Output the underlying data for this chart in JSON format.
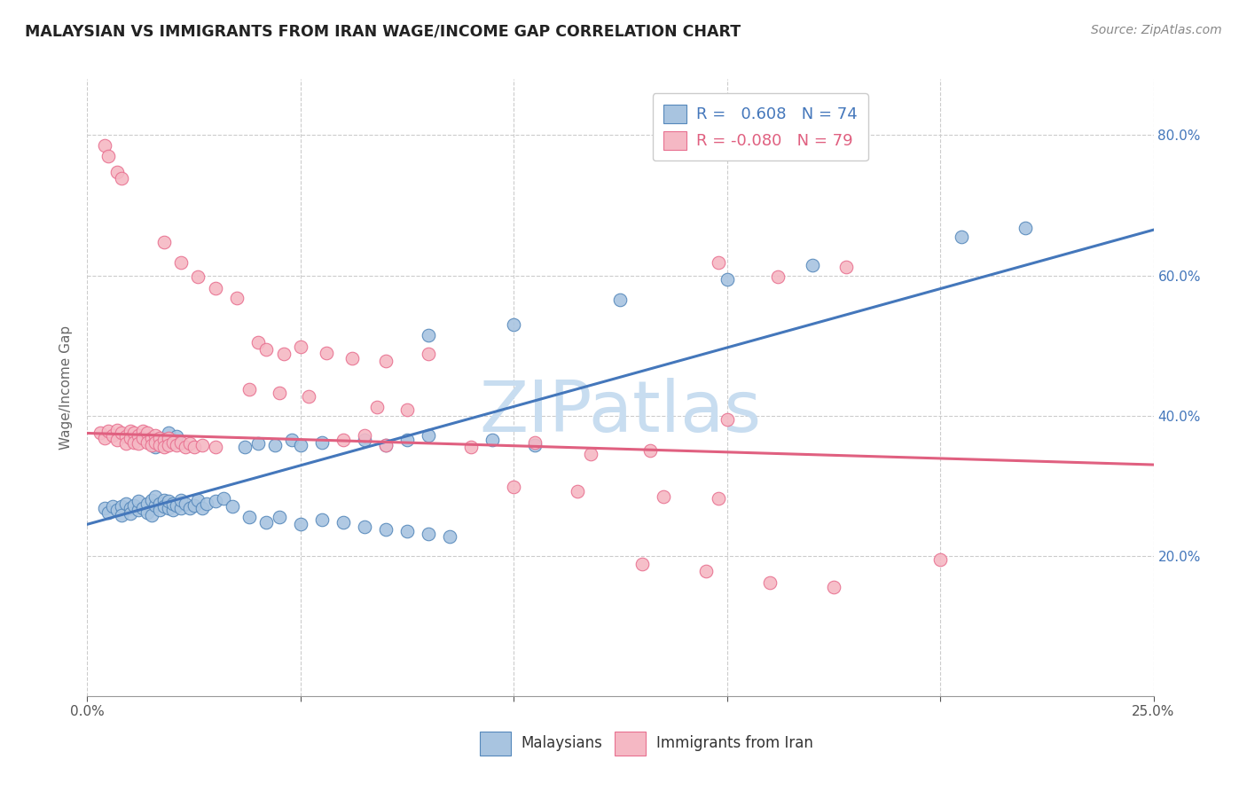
{
  "title": "MALAYSIAN VS IMMIGRANTS FROM IRAN WAGE/INCOME GAP CORRELATION CHART",
  "source": "Source: ZipAtlas.com",
  "ylabel": "Wage/Income Gap",
  "xlim": [
    0.0,
    0.25
  ],
  "ylim": [
    0.0,
    0.88
  ],
  "blue_R": 0.608,
  "blue_N": 74,
  "pink_R": -0.08,
  "pink_N": 79,
  "blue_color": "#a8c4e0",
  "pink_color": "#f5b8c4",
  "blue_edge_color": "#5588bb",
  "pink_edge_color": "#e87090",
  "blue_line_color": "#4477bb",
  "pink_line_color": "#e06080",
  "watermark_color": "#c8ddf0",
  "grid_color": "#cccccc",
  "title_color": "#222222",
  "source_color": "#888888",
  "ylabel_color": "#666666",
  "tick_color": "#555555",
  "legend_text_blue": "#4477bb",
  "legend_text_pink": "#e06080",
  "blue_line_x0": 0.0,
  "blue_line_y0": 0.245,
  "blue_line_x1": 0.25,
  "blue_line_y1": 0.665,
  "pink_line_x0": 0.0,
  "pink_line_y0": 0.375,
  "pink_line_x1": 0.25,
  "pink_line_y1": 0.33,
  "blue_scatter": [
    [
      0.004,
      0.268
    ],
    [
      0.005,
      0.262
    ],
    [
      0.006,
      0.271
    ],
    [
      0.007,
      0.265
    ],
    [
      0.008,
      0.27
    ],
    [
      0.008,
      0.258
    ],
    [
      0.009,
      0.275
    ],
    [
      0.01,
      0.268
    ],
    [
      0.01,
      0.26
    ],
    [
      0.011,
      0.272
    ],
    [
      0.012,
      0.265
    ],
    [
      0.012,
      0.278
    ],
    [
      0.013,
      0.268
    ],
    [
      0.014,
      0.275
    ],
    [
      0.014,
      0.262
    ],
    [
      0.015,
      0.28
    ],
    [
      0.015,
      0.258
    ],
    [
      0.016,
      0.272
    ],
    [
      0.016,
      0.285
    ],
    [
      0.017,
      0.275
    ],
    [
      0.017,
      0.265
    ],
    [
      0.018,
      0.28
    ],
    [
      0.018,
      0.27
    ],
    [
      0.019,
      0.268
    ],
    [
      0.019,
      0.278
    ],
    [
      0.02,
      0.265
    ],
    [
      0.02,
      0.275
    ],
    [
      0.021,
      0.272
    ],
    [
      0.022,
      0.268
    ],
    [
      0.022,
      0.28
    ],
    [
      0.023,
      0.275
    ],
    [
      0.024,
      0.268
    ],
    [
      0.025,
      0.272
    ],
    [
      0.026,
      0.28
    ],
    [
      0.027,
      0.268
    ],
    [
      0.028,
      0.275
    ],
    [
      0.03,
      0.278
    ],
    [
      0.032,
      0.282
    ],
    [
      0.034,
      0.27
    ],
    [
      0.016,
      0.355
    ],
    [
      0.017,
      0.368
    ],
    [
      0.018,
      0.36
    ],
    [
      0.019,
      0.375
    ],
    [
      0.02,
      0.362
    ],
    [
      0.021,
      0.37
    ],
    [
      0.037,
      0.355
    ],
    [
      0.04,
      0.36
    ],
    [
      0.044,
      0.358
    ],
    [
      0.048,
      0.365
    ],
    [
      0.05,
      0.358
    ],
    [
      0.055,
      0.362
    ],
    [
      0.038,
      0.255
    ],
    [
      0.042,
      0.248
    ],
    [
      0.045,
      0.255
    ],
    [
      0.05,
      0.245
    ],
    [
      0.055,
      0.252
    ],
    [
      0.06,
      0.248
    ],
    [
      0.065,
      0.242
    ],
    [
      0.07,
      0.238
    ],
    [
      0.075,
      0.235
    ],
    [
      0.08,
      0.232
    ],
    [
      0.085,
      0.228
    ],
    [
      0.065,
      0.365
    ],
    [
      0.07,
      0.358
    ],
    [
      0.075,
      0.365
    ],
    [
      0.08,
      0.372
    ],
    [
      0.095,
      0.365
    ],
    [
      0.105,
      0.358
    ],
    [
      0.08,
      0.515
    ],
    [
      0.1,
      0.53
    ],
    [
      0.125,
      0.565
    ],
    [
      0.15,
      0.595
    ],
    [
      0.17,
      0.615
    ],
    [
      0.205,
      0.655
    ],
    [
      0.22,
      0.668
    ]
  ],
  "pink_scatter": [
    [
      0.003,
      0.375
    ],
    [
      0.004,
      0.368
    ],
    [
      0.005,
      0.378
    ],
    [
      0.006,
      0.372
    ],
    [
      0.007,
      0.38
    ],
    [
      0.007,
      0.365
    ],
    [
      0.008,
      0.375
    ],
    [
      0.009,
      0.37
    ],
    [
      0.009,
      0.36
    ],
    [
      0.01,
      0.378
    ],
    [
      0.01,
      0.368
    ],
    [
      0.011,
      0.375
    ],
    [
      0.011,
      0.362
    ],
    [
      0.012,
      0.372
    ],
    [
      0.012,
      0.36
    ],
    [
      0.013,
      0.378
    ],
    [
      0.013,
      0.368
    ],
    [
      0.014,
      0.375
    ],
    [
      0.014,
      0.362
    ],
    [
      0.015,
      0.368
    ],
    [
      0.015,
      0.358
    ],
    [
      0.016,
      0.372
    ],
    [
      0.016,
      0.362
    ],
    [
      0.017,
      0.368
    ],
    [
      0.017,
      0.358
    ],
    [
      0.018,
      0.365
    ],
    [
      0.018,
      0.355
    ],
    [
      0.019,
      0.368
    ],
    [
      0.019,
      0.358
    ],
    [
      0.02,
      0.362
    ],
    [
      0.021,
      0.358
    ],
    [
      0.022,
      0.362
    ],
    [
      0.023,
      0.355
    ],
    [
      0.024,
      0.36
    ],
    [
      0.025,
      0.355
    ],
    [
      0.027,
      0.358
    ],
    [
      0.03,
      0.355
    ],
    [
      0.004,
      0.785
    ],
    [
      0.005,
      0.77
    ],
    [
      0.007,
      0.748
    ],
    [
      0.008,
      0.738
    ],
    [
      0.018,
      0.648
    ],
    [
      0.022,
      0.618
    ],
    [
      0.026,
      0.598
    ],
    [
      0.03,
      0.582
    ],
    [
      0.035,
      0.568
    ],
    [
      0.04,
      0.505
    ],
    [
      0.042,
      0.495
    ],
    [
      0.046,
      0.488
    ],
    [
      0.05,
      0.498
    ],
    [
      0.056,
      0.49
    ],
    [
      0.062,
      0.482
    ],
    [
      0.07,
      0.478
    ],
    [
      0.08,
      0.488
    ],
    [
      0.038,
      0.438
    ],
    [
      0.045,
      0.432
    ],
    [
      0.052,
      0.428
    ],
    [
      0.068,
      0.412
    ],
    [
      0.075,
      0.408
    ],
    [
      0.06,
      0.365
    ],
    [
      0.065,
      0.372
    ],
    [
      0.07,
      0.358
    ],
    [
      0.09,
      0.355
    ],
    [
      0.105,
      0.362
    ],
    [
      0.118,
      0.345
    ],
    [
      0.132,
      0.35
    ],
    [
      0.1,
      0.298
    ],
    [
      0.115,
      0.292
    ],
    [
      0.13,
      0.188
    ],
    [
      0.145,
      0.178
    ],
    [
      0.16,
      0.162
    ],
    [
      0.175,
      0.155
    ],
    [
      0.148,
      0.618
    ],
    [
      0.162,
      0.598
    ],
    [
      0.178,
      0.612
    ],
    [
      0.135,
      0.285
    ],
    [
      0.148,
      0.282
    ],
    [
      0.15,
      0.395
    ],
    [
      0.2,
      0.195
    ]
  ]
}
